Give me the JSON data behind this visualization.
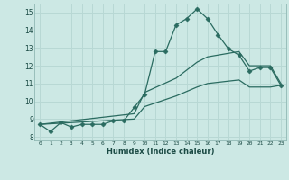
{
  "title": "",
  "xlabel": "Humidex (Indice chaleur)",
  "background_color": "#cce8e4",
  "grid_color": "#b8d8d4",
  "line_color": "#2a6b60",
  "xlim": [
    -0.5,
    23.5
  ],
  "ylim": [
    7.8,
    15.5
  ],
  "xtick_positions": [
    0,
    1,
    2,
    3,
    4,
    5,
    6,
    7,
    8,
    9,
    10,
    11,
    12,
    13,
    14,
    15,
    16,
    17,
    18,
    19,
    20,
    21,
    22,
    23
  ],
  "xtick_labels": [
    "0",
    "1",
    "2",
    "3",
    "4",
    "5",
    "6",
    "7",
    "8",
    "9",
    "10",
    "11",
    "12",
    "13",
    "14",
    "15",
    "16",
    "17",
    "18",
    "19",
    "20",
    "21",
    "22",
    "23"
  ],
  "ytick_values": [
    8,
    9,
    10,
    11,
    12,
    13,
    14,
    15
  ],
  "line1_x": [
    0,
    1,
    2,
    3,
    4,
    5,
    6,
    7,
    8,
    9,
    10,
    11,
    12,
    13,
    14,
    15,
    16,
    17,
    18,
    19,
    20,
    21,
    22,
    23
  ],
  "line1_y": [
    8.7,
    8.3,
    8.8,
    8.55,
    8.7,
    8.7,
    8.7,
    8.9,
    8.9,
    9.65,
    10.4,
    12.8,
    12.8,
    14.3,
    14.65,
    15.2,
    14.65,
    13.75,
    12.95,
    12.6,
    11.7,
    11.9,
    11.9,
    10.9
  ],
  "line2_x": [
    0,
    9,
    10,
    13,
    15,
    16,
    19,
    20,
    21,
    22,
    23
  ],
  "line2_y": [
    8.7,
    9.3,
    10.5,
    11.3,
    12.2,
    12.5,
    12.8,
    12.0,
    12.0,
    12.0,
    11.0
  ],
  "line3_x": [
    0,
    9,
    10,
    13,
    15,
    16,
    19,
    20,
    21,
    22,
    23
  ],
  "line3_y": [
    8.7,
    9.0,
    9.7,
    10.3,
    10.8,
    11.0,
    11.2,
    10.8,
    10.8,
    10.8,
    10.9
  ]
}
